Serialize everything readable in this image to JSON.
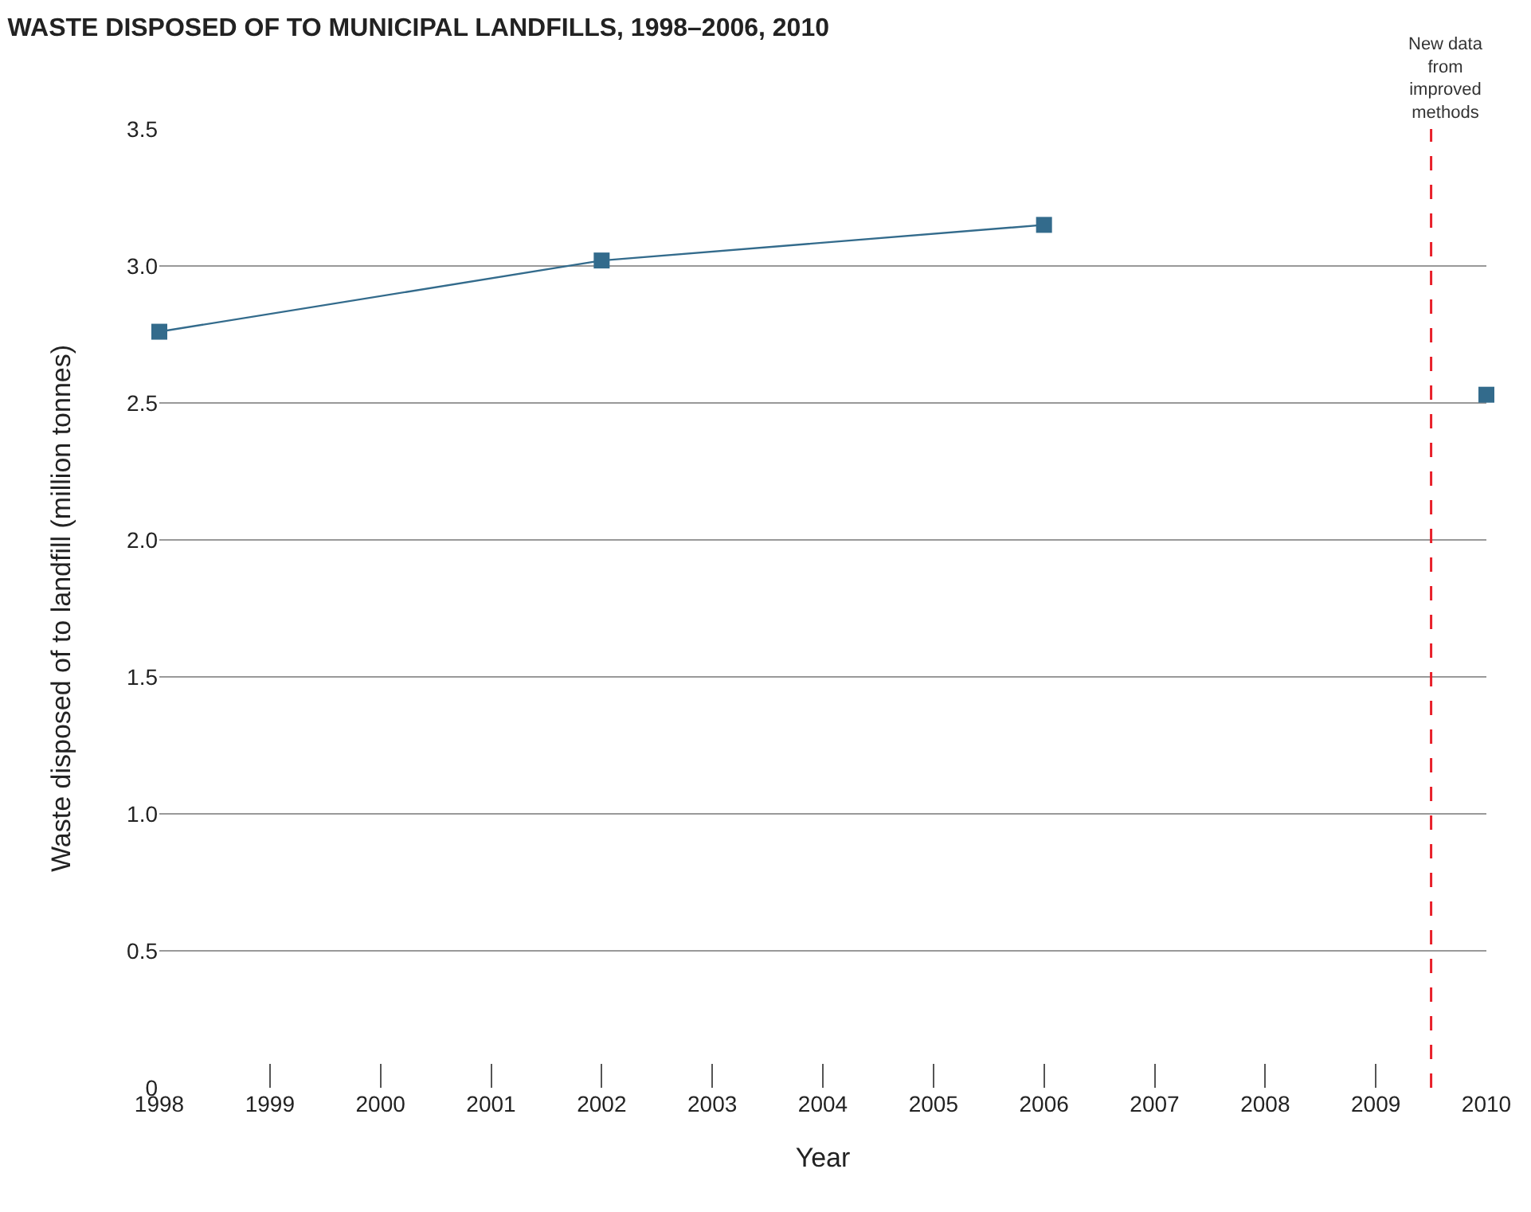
{
  "chart_data": {
    "type": "line",
    "title": "WASTE DISPOSED OF TO MUNICIPAL LANDFILLS, 1998–2006, 2010",
    "xlabel": "Year",
    "ylabel": "Waste disposed of to landfill (million tonnes)",
    "series": [
      {
        "color": "#336b8c",
        "x": [
          1998,
          2002,
          2006
        ],
        "values": [
          2.76,
          3.02,
          3.15
        ]
      },
      {
        "type": "scatter",
        "color": "#336b8c",
        "x": [
          2010
        ],
        "values": [
          2.53
        ]
      }
    ],
    "xlim": [
      1998,
      2010
    ],
    "xticks": [
      1998,
      1999,
      2000,
      2001,
      2002,
      2003,
      2004,
      2005,
      2006,
      2007,
      2008,
      2009,
      2010
    ],
    "ylim": [
      0,
      3.5
    ],
    "yticks": [
      0,
      {
        "value": 0.5,
        "label": "0.5"
      },
      {
        "value": 1,
        "label": "1.0"
      },
      {
        "value": 1.5,
        "label": "1.5"
      },
      {
        "value": 2,
        "label": "2.0"
      },
      {
        "value": 2.5,
        "label": "2.5"
      },
      {
        "value": 3,
        "label": "3.0"
      },
      {
        "value": 3.5,
        "label": "3.5"
      }
    ],
    "ref_lines": [
      {
        "axis": "x",
        "value": 2009.5,
        "label": "New data from improved methods",
        "color": "#e8202a",
        "line_style": "dashed"
      }
    ],
    "grid": "y",
    "legend": false,
    "marker": "square",
    "line_style": "solid"
  }
}
